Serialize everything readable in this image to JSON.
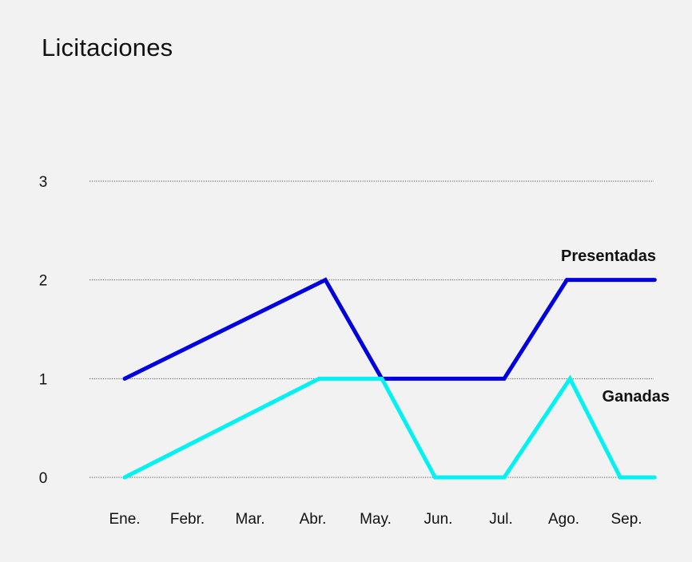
{
  "chart_data": {
    "type": "line",
    "title": "Licitaciones",
    "categories": [
      "Ene.",
      "Febr.",
      "Mar.",
      "Abr.",
      "May.",
      "Jun.",
      "Jul.",
      "Ago.",
      "Sep."
    ],
    "x": [
      0,
      1,
      2,
      3,
      4,
      5,
      6,
      7,
      8
    ],
    "series": [
      {
        "name": "Presentadas",
        "color": "#0000e0",
        "x": [
          0,
          3.2,
          4.1,
          5.05,
          6.05,
          7.05,
          8.45
        ],
        "values": [
          1,
          2,
          1,
          1,
          1,
          2,
          2
        ]
      },
      {
        "name": "Ganadas",
        "color": "#00f2f2",
        "x": [
          0,
          3.1,
          4.1,
          4.95,
          6.05,
          7.1,
          7.9,
          8.45
        ],
        "values": [
          0,
          1,
          1,
          0,
          0,
          1,
          0,
          0
        ]
      }
    ],
    "yticks": [
      0,
      1,
      2,
      3
    ],
    "ylim": [
      0,
      3
    ],
    "grid": "horizontal dotted",
    "xlabel": "",
    "ylabel": ""
  }
}
